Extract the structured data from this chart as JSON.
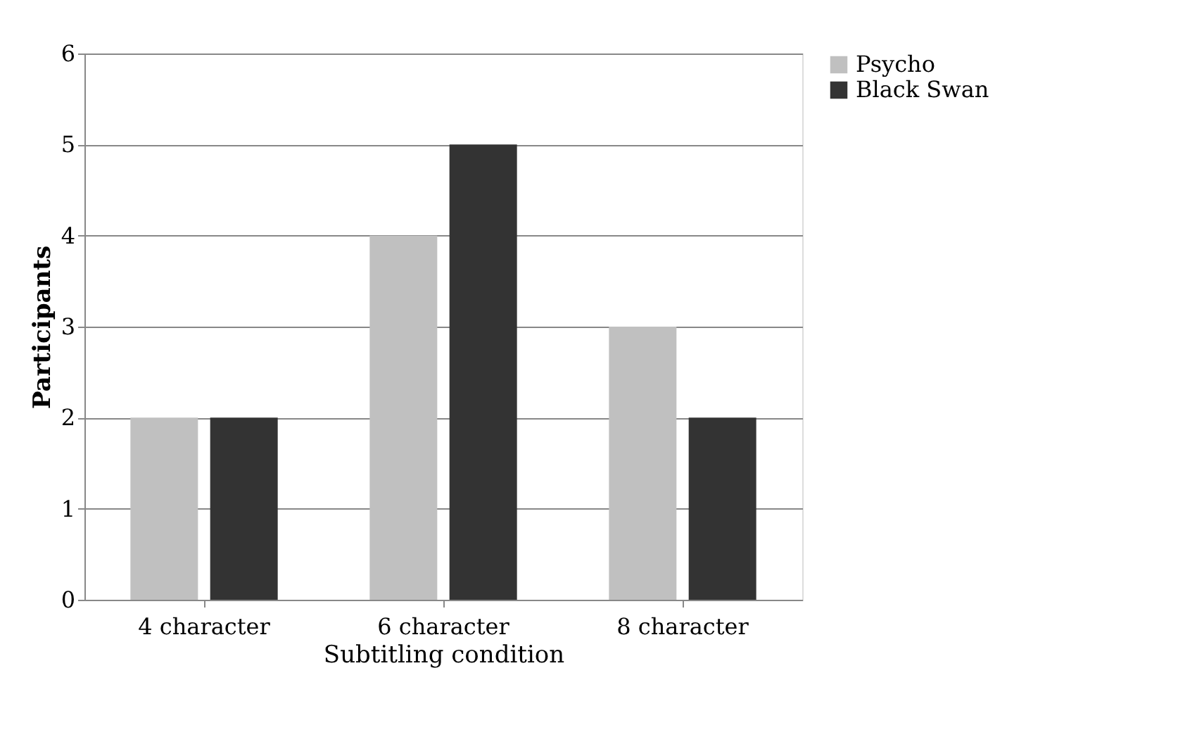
{
  "chart_data": {
    "type": "bar",
    "xlabel": "Subtitling condition",
    "ylabel": "Participants",
    "categories": [
      "4 character",
      "6 character",
      "8 character"
    ],
    "series": [
      {
        "name": "Psycho",
        "color": "#c0c0c0",
        "values": [
          2,
          4,
          3
        ]
      },
      {
        "name": "Black Swan",
        "color": "#333333",
        "values": [
          2,
          5,
          2
        ]
      }
    ],
    "ylim": [
      0,
      6
    ],
    "yticks": [
      0,
      1,
      2,
      3,
      4,
      5,
      6
    ],
    "grid": "y",
    "legend": "right"
  }
}
